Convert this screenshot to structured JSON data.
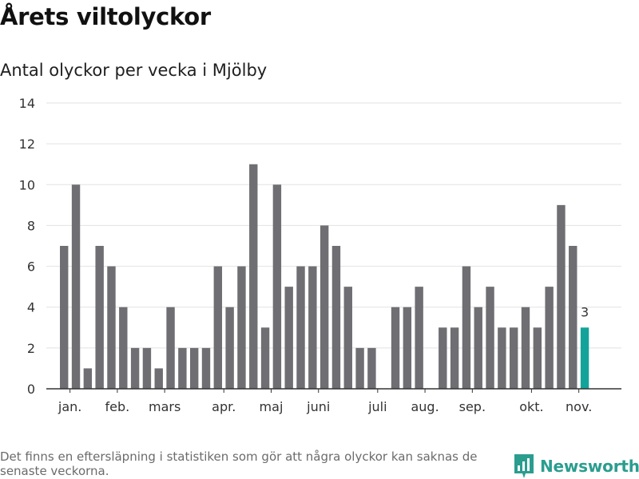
{
  "title": "Årets viltolyckor",
  "subtitle": "Antal olyckor per vecka i Mjölby",
  "footnote": "Det finns en eftersläpning i statistiken som gör att några olyckor kan saknas de senaste veckorna.",
  "brand": {
    "name": "Newsworthy",
    "icon": "newsworthy-logo-icon",
    "color": "#2a9d8f"
  },
  "colors": {
    "bar": "#6e6e73",
    "highlight": "#13a39a",
    "grid": "#e2e2e2",
    "axis": "#333333"
  },
  "chart_data": {
    "type": "bar",
    "title": "",
    "xlabel": "",
    "ylabel": "",
    "ylim": [
      0,
      14
    ],
    "yticks": [
      0,
      2,
      4,
      6,
      8,
      10,
      12,
      14
    ],
    "grid": true,
    "weeks": [
      2,
      3,
      4,
      5,
      6,
      7,
      8,
      9,
      10,
      11,
      12,
      13,
      14,
      15,
      16,
      17,
      18,
      19,
      20,
      21,
      22,
      23,
      24,
      25,
      26,
      27,
      28,
      29,
      30,
      31,
      32,
      33,
      34,
      35,
      36,
      37,
      38,
      39,
      40,
      41,
      42,
      43,
      44,
      45,
      46
    ],
    "values": [
      7,
      10,
      1,
      7,
      6,
      4,
      2,
      2,
      1,
      4,
      2,
      2,
      2,
      6,
      4,
      6,
      11,
      3,
      10,
      5,
      6,
      6,
      8,
      7,
      5,
      2,
      2,
      null,
      4,
      4,
      5,
      null,
      3,
      3,
      6,
      4,
      5,
      3,
      3,
      4,
      3,
      5,
      9,
      7,
      3
    ],
    "highlight_index": 44,
    "data_labels": [
      {
        "index": 44,
        "text": "3"
      }
    ],
    "month_labels": [
      {
        "label": "jan.",
        "week": 2.5
      },
      {
        "label": "feb.",
        "week": 6.5
      },
      {
        "label": "mars",
        "week": 10.5
      },
      {
        "label": "apr.",
        "week": 15.5
      },
      {
        "label": "maj",
        "week": 19.5
      },
      {
        "label": "juni",
        "week": 23.5
      },
      {
        "label": "juli",
        "week": 28.5
      },
      {
        "label": "aug.",
        "week": 32.5
      },
      {
        "label": "sep.",
        "week": 36.5
      },
      {
        "label": "okt.",
        "week": 41.5
      },
      {
        "label": "nov.",
        "week": 45.5
      }
    ]
  }
}
